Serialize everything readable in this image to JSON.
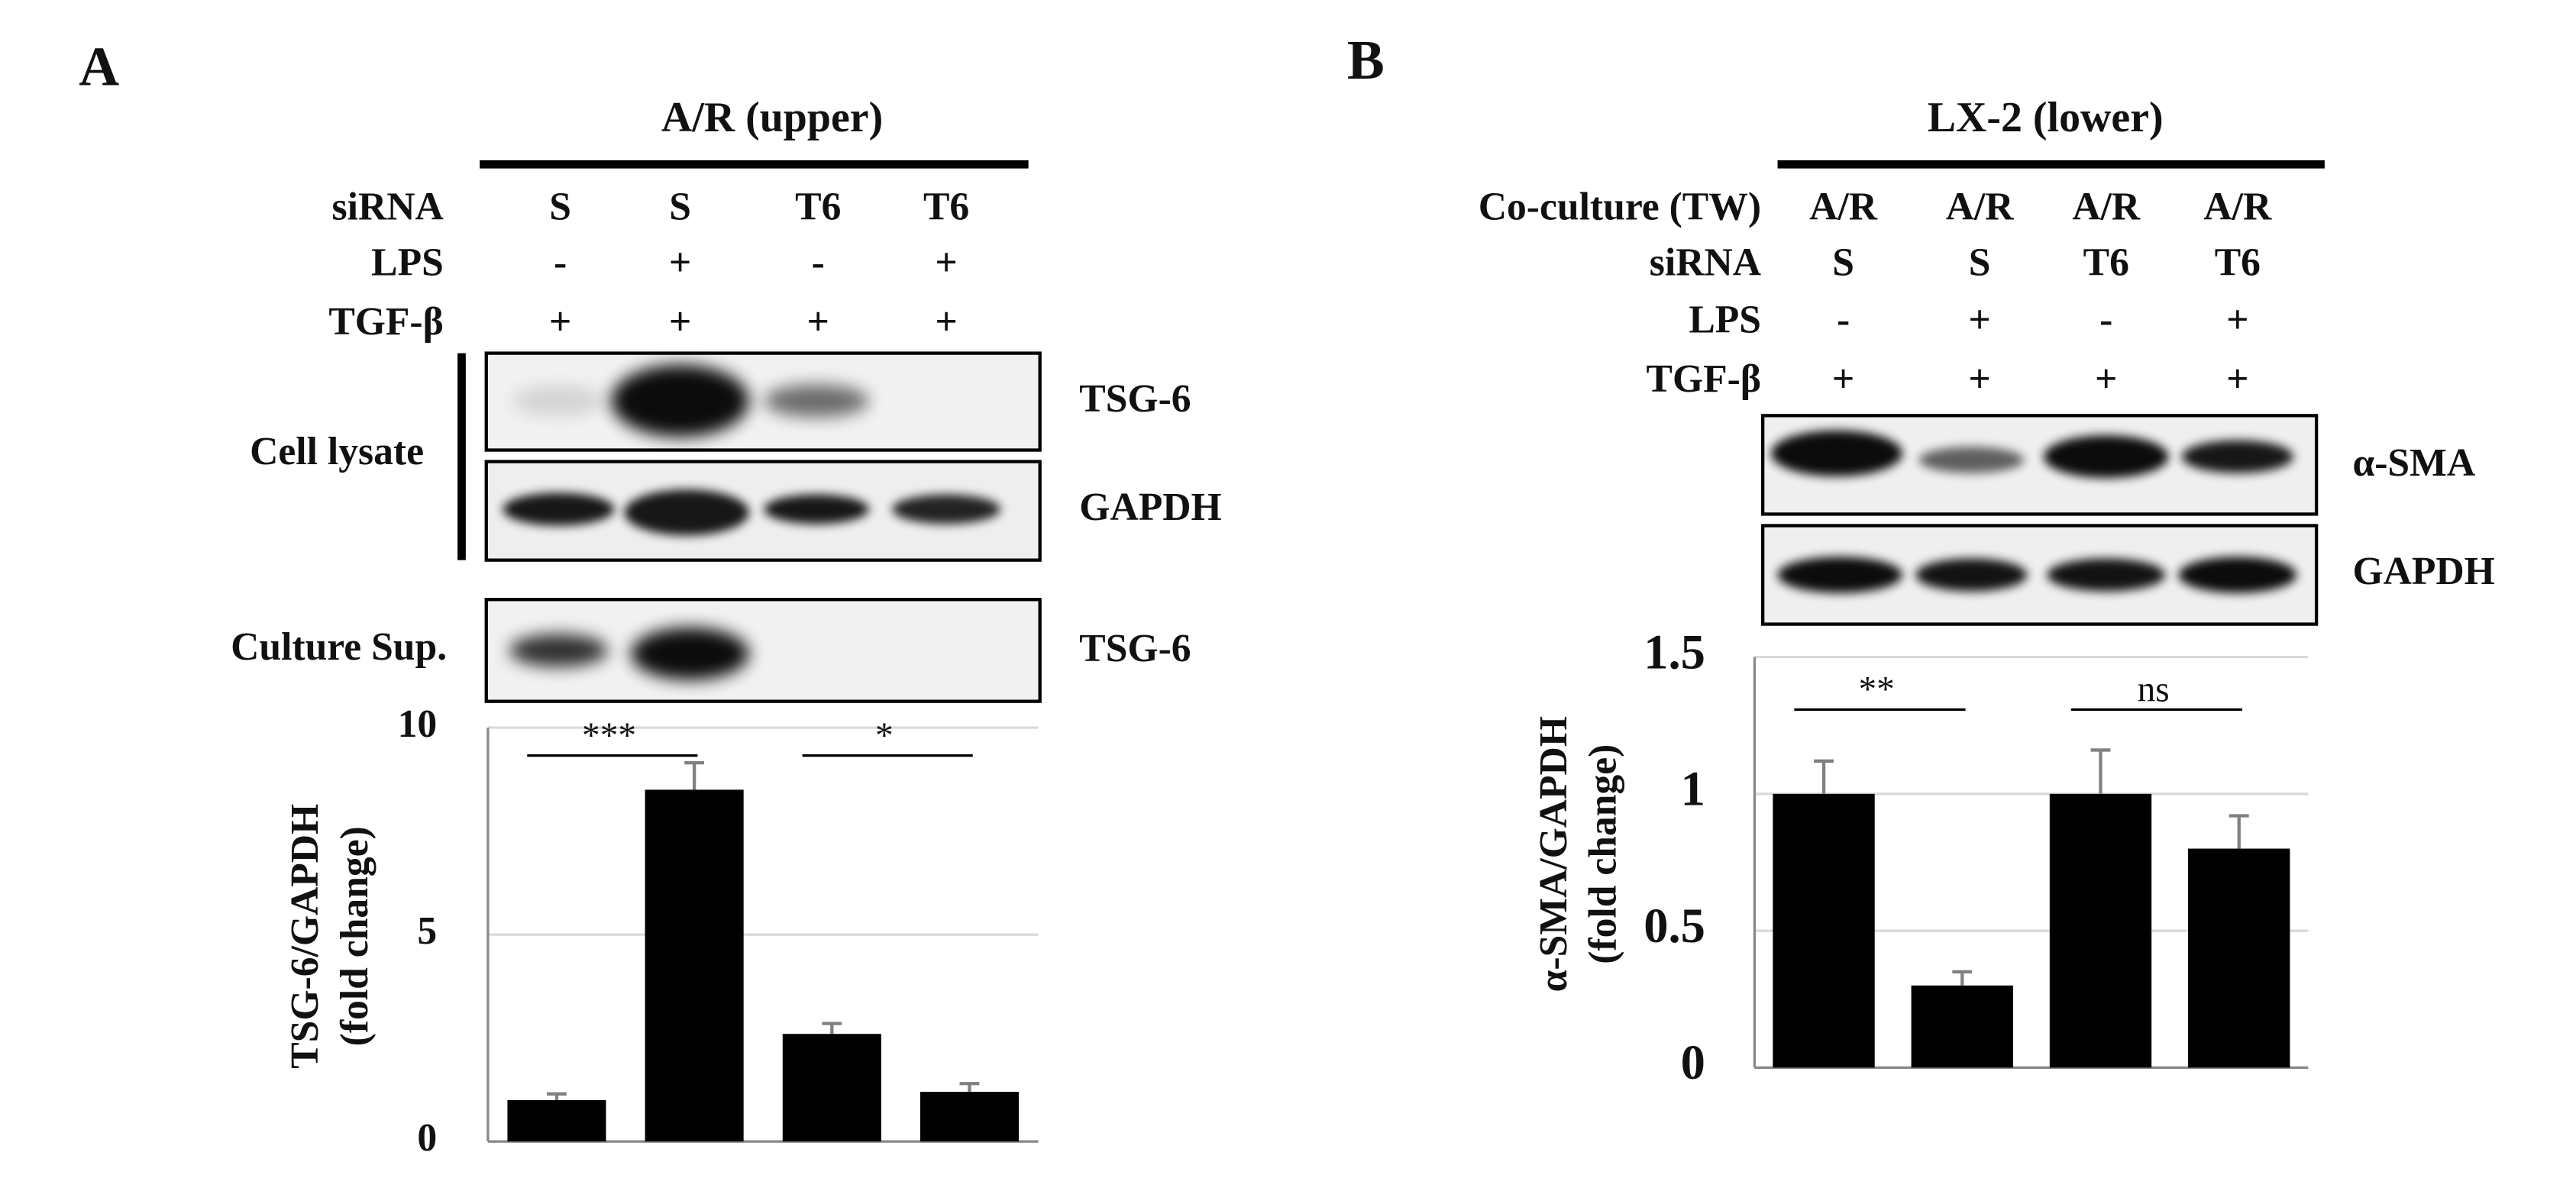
{
  "panels": [
    {
      "label": "A",
      "header": "A/R (upper)",
      "conditions": [
        {
          "name": "siRNA",
          "lanes": [
            "S",
            "S",
            "T6",
            "T6"
          ]
        },
        {
          "name": "LPS",
          "lanes": [
            "-",
            "+",
            "-",
            "+"
          ]
        },
        {
          "name": "TGF-β",
          "lanes": [
            "+",
            "+",
            "+",
            "+"
          ]
        }
      ],
      "sections": [
        {
          "name": "Cell lysate",
          "blots": [
            "TSG-6",
            "GAPDH"
          ]
        },
        {
          "name": "Culture Sup.",
          "blots": [
            "TSG-6"
          ]
        }
      ]
    },
    {
      "label": "B",
      "header": "LX-2 (lower)",
      "conditions": [
        {
          "name": "Co-culture (TW)",
          "lanes": [
            "A/R",
            "A/R",
            "A/R",
            "A/R"
          ]
        },
        {
          "name": "siRNA",
          "lanes": [
            "S",
            "S",
            "T6",
            "T6"
          ]
        },
        {
          "name": "LPS",
          "lanes": [
            "-",
            "+",
            "-",
            "+"
          ]
        },
        {
          "name": "TGF-β",
          "lanes": [
            "+",
            "+",
            "+",
            "+"
          ]
        }
      ],
      "blots": [
        "α-SMA",
        "GAPDH"
      ]
    }
  ],
  "chart_data": [
    {
      "type": "bar",
      "y_label": [
        "TSG-6/GAPDH",
        "(fold change)"
      ],
      "categories": [
        null,
        null,
        null,
        null
      ],
      "values": [
        1,
        8.5,
        2.6,
        1.2
      ],
      "errors": [
        0.15,
        0.65,
        0.25,
        0.2
      ],
      "color": "#000000",
      "error_color": "#808080",
      "ylim": [
        0,
        10
      ],
      "yticks": [
        0,
        5,
        10
      ],
      "grid": true,
      "annotations": [
        "***",
        "*"
      ]
    },
    {
      "type": "bar",
      "y_label": [
        "α-SMA/GAPDH",
        "(fold change)"
      ],
      "categories": [
        null,
        null,
        null,
        null
      ],
      "values": [
        1,
        0.3,
        1,
        0.8
      ],
      "errors": [
        0.12,
        0.05,
        0.16,
        0.12
      ],
      "color": "#000000",
      "error_color": "#808080",
      "ylim": [
        0,
        1.5
      ],
      "yticks": [
        0,
        0.5,
        1,
        1.5
      ],
      "grid": true,
      "annotations": [
        "**",
        "ns"
      ]
    }
  ]
}
